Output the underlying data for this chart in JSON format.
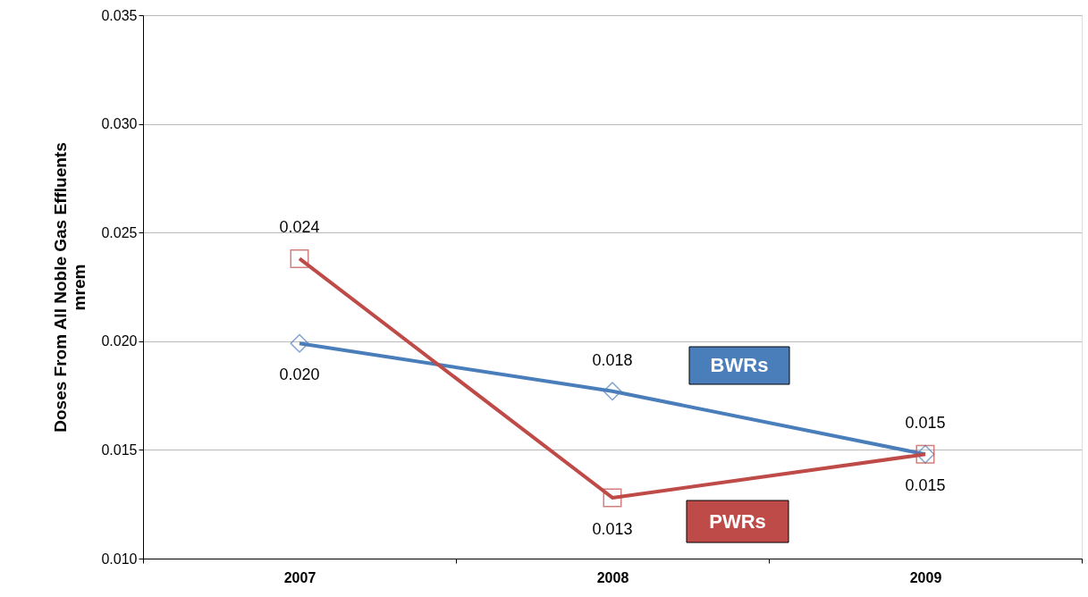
{
  "chart_data": {
    "type": "line",
    "ylabel": "Doses From All Noble Gas Effluents\nmrem",
    "categories": [
      "2007",
      "2008",
      "2009"
    ],
    "series": [
      {
        "name": "BWRs",
        "color": "#4a7ebb",
        "marker": "diamond",
        "values": [
          0.0199,
          0.0177,
          0.0148
        ],
        "value_labels": [
          "0.020",
          "0.018",
          "0.015"
        ]
      },
      {
        "name": "PWRs",
        "color": "#be4b48",
        "marker": "square",
        "values": [
          0.0238,
          0.0128,
          0.0148
        ],
        "value_labels": [
          "0.024",
          "0.013",
          "0.015"
        ]
      }
    ],
    "ylim": [
      0.01,
      0.035
    ],
    "yticks": [
      {
        "value": 0.01,
        "label": "0.010"
      },
      {
        "value": 0.015,
        "label": "0.015"
      },
      {
        "value": 0.02,
        "label": "0.020"
      },
      {
        "value": 0.025,
        "label": "0.025"
      },
      {
        "value": 0.03,
        "label": "0.030"
      },
      {
        "value": 0.035,
        "label": "0.035"
      }
    ],
    "grid": "y",
    "legend": false,
    "line_style": "solid"
  }
}
